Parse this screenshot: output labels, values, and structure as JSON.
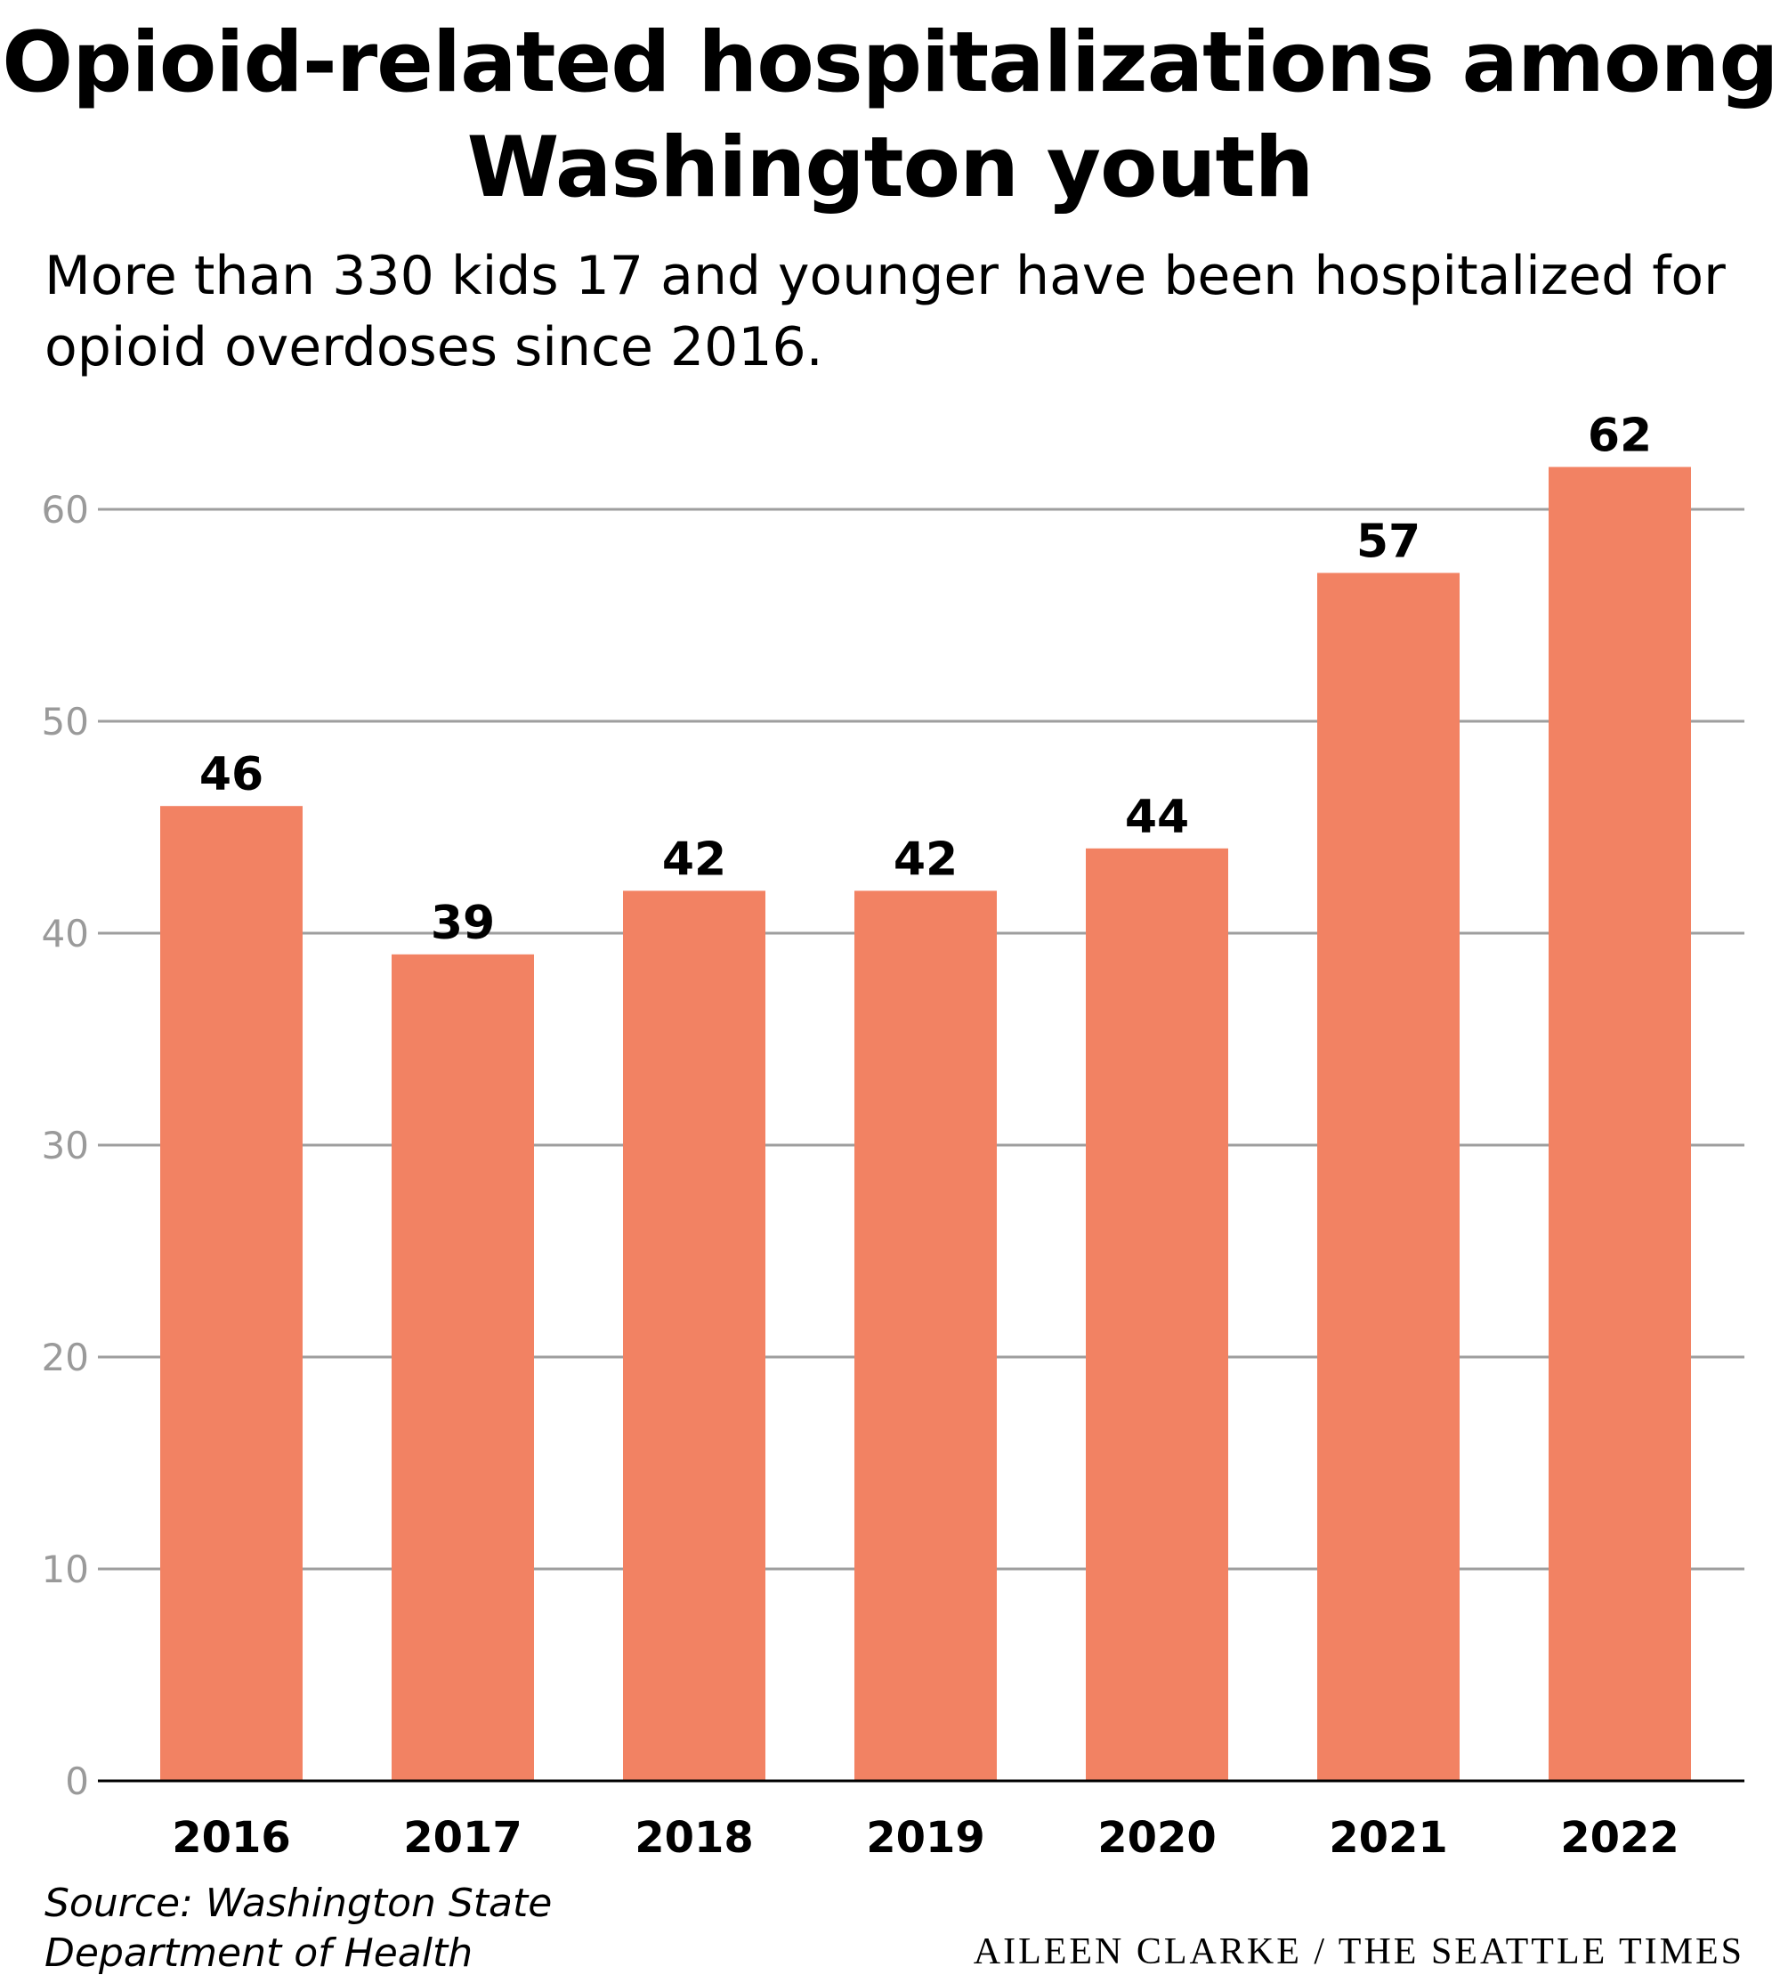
{
  "title": "Opioid-related hospitalizations among Washington youth",
  "subtitle": "More than 330 kids 17 and younger have been hospitalized for opioid overdoses since 2016.",
  "source": {
    "line1": "Source: Washington State",
    "line2": "Department of Health"
  },
  "credit": {
    "author": "AILEEN CLARKE",
    "separator": " / ",
    "outlet": "THE SEATTLE TIMES"
  },
  "colors": {
    "bar": "#f28263",
    "grid": "#9e9e9e",
    "axis": "#000000",
    "tick_label": "#9a9a9a"
  },
  "chart_data": {
    "type": "bar",
    "categories": [
      "2016",
      "2017",
      "2018",
      "2019",
      "2020",
      "2021",
      "2022"
    ],
    "values": [
      46,
      39,
      42,
      42,
      44,
      57,
      62
    ],
    "data_labels": [
      "46",
      "39",
      "42",
      "42",
      "44",
      "57",
      "62"
    ],
    "ylim": [
      0,
      62
    ],
    "yticks": [
      0,
      10,
      20,
      30,
      40,
      50,
      60
    ],
    "grid": true,
    "title": "Opioid-related hospitalizations among Washington youth",
    "xlabel": "",
    "ylabel": ""
  }
}
